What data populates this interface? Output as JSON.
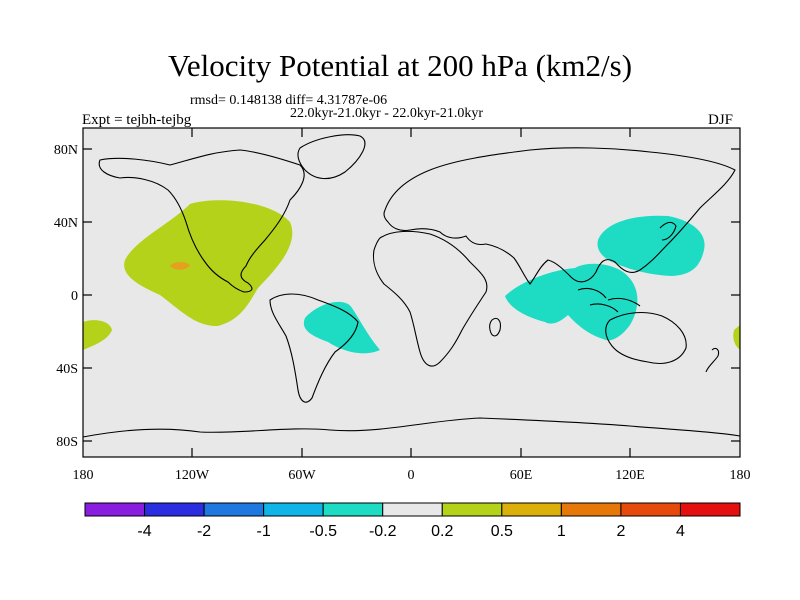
{
  "title": "Velocity Potential at 200 hPa (km2/s)",
  "stats": "rmsd= 0.148138 diff= 4.31787e-06",
  "period": "22.0kyr-21.0kyr - 22.0kyr-21.0kyr",
  "expt": "Expt = tejbh-tejbg",
  "season": "DJF",
  "lat_labels": [
    "80N",
    "40N",
    "0",
    "40S",
    "80S"
  ],
  "lon_labels": [
    "180",
    "120W",
    "60W",
    "0",
    "60E",
    "120E",
    "180"
  ],
  "colorbar": {
    "labels": [
      "-4",
      "-2",
      "-1",
      "-0.5",
      "-0.2",
      "0.2",
      "0.5",
      "1",
      "2",
      "4"
    ],
    "colors": [
      "#8a1ee0",
      "#2a2ee0",
      "#1e78e0",
      "#10b4e6",
      "#1edcc4",
      "#e8e8e8",
      "#b4d21a",
      "#dcb00a",
      "#e6780a",
      "#e64a0a",
      "#e60f0f"
    ]
  },
  "colors": {
    "ocean": "#e8e8e8",
    "positive_weak": "#b4d21a",
    "positive_mid": "#e6a020",
    "negative_weak": "#1edcc4"
  }
}
